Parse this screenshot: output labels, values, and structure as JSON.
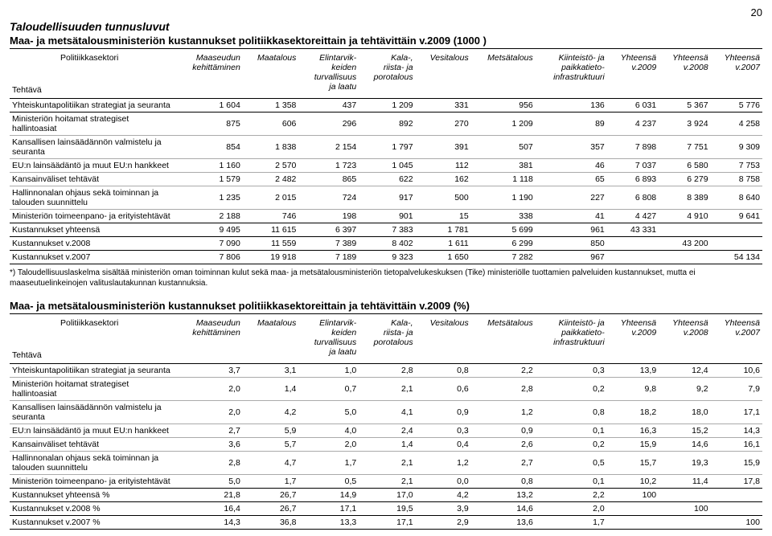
{
  "page_number": "20",
  "main_header": "Taloudellisuuden tunnusluvut",
  "table1": {
    "title": "Maa- ja metsätalousministeriön kustannukset politiikkasektoreittain ja tehtävittäin v.2009 (1000 )",
    "col_left1": "Tehtävä",
    "col_left2": "Politiikkasektori",
    "cols": [
      "Maaseudun\nkehittäminen",
      "Maatalous",
      "Elintarvik-\nkeiden\nturvallisuus\nja laatu",
      "Kala-,\nriista- ja\nporotalous",
      "Vesitalous",
      "Metsätalous",
      "Kiinteistö- ja\npaikkatieto-\ninfrastruktuuri",
      "Yhteensä\nv.2009",
      "Yhteensä\nv.2008",
      "Yhteensä\nv.2007"
    ],
    "rows": [
      {
        "label": "Yhteiskuntapolitiikan strategiat ja seuranta",
        "v": [
          "1 604",
          "1 358",
          "437",
          "1 209",
          "331",
          "956",
          "136",
          "6 031",
          "5 367",
          "5 776"
        ],
        "style": "divider"
      },
      {
        "label": "Ministeriön hoitamat strategiset hallintoasiat",
        "v": [
          "875",
          "606",
          "296",
          "892",
          "270",
          "1 209",
          "89",
          "4 237",
          "3 924",
          "4 258"
        ],
        "style": "thin"
      },
      {
        "label": "Kansallisen lainsäädännön valmistelu ja seuranta",
        "v": [
          "854",
          "1 838",
          "2 154",
          "1 797",
          "391",
          "507",
          "357",
          "7 898",
          "7 751",
          "9 309"
        ],
        "style": "thin"
      },
      {
        "label": "EU:n lainsäädäntö ja muut EU:n hankkeet",
        "v": [
          "1 160",
          "2 570",
          "1 723",
          "1 045",
          "112",
          "381",
          "46",
          "7 037",
          "6 580",
          "7 753"
        ],
        "style": "thin"
      },
      {
        "label": "Kansainväliset tehtävät",
        "v": [
          "1 579",
          "2 482",
          "865",
          "622",
          "162",
          "1 118",
          "65",
          "6 893",
          "6 279",
          "8 758"
        ],
        "style": "thin"
      },
      {
        "label": "Hallinnonalan ohjaus sekä toiminnan ja talouden suunnittelu",
        "v": [
          "1 235",
          "2 015",
          "724",
          "917",
          "500",
          "1 190",
          "227",
          "6 808",
          "8 389",
          "8 640"
        ],
        "style": "thin"
      },
      {
        "label": "Ministeriön toimeenpano- ja erityistehtävät",
        "v": [
          "2 188",
          "746",
          "198",
          "901",
          "15",
          "338",
          "41",
          "4 427",
          "4 910",
          "9 641"
        ],
        "style": "divider"
      },
      {
        "label": "Kustannukset yhteensä",
        "v": [
          "9 495",
          "11 615",
          "6 397",
          "7 383",
          "1 781",
          "5 699",
          "961",
          "43 331",
          "",
          ""
        ],
        "style": "divider"
      },
      {
        "label": "Kustannukset v.2008",
        "v": [
          "7 090",
          "11 559",
          "7 389",
          "8 402",
          "1 611",
          "6 299",
          "850",
          "",
          "43 200",
          ""
        ],
        "style": "divider"
      },
      {
        "label": "Kustannukset v.2007",
        "v": [
          "7 806",
          "19 918",
          "7 189",
          "9 323",
          "1 650",
          "7 282",
          "967",
          "",
          "",
          "54 134"
        ],
        "style": "divider"
      }
    ]
  },
  "footnote": "*) Taloudellisuuslaskelma sisältää ministeriön oman toiminnan kulut sekä maa- ja metsätalousministeriön tietopalvelukeskuksen (Tike) ministeriölle tuottamien palveluiden kustannukset, mutta ei maaseutuelinkeinojen valituslautakunnan kustannuksia.",
  "table2": {
    "title": "Maa- ja metsätalousministeriön kustannukset politiikkasektoreittain ja tehtävittäin v.2009 (%)",
    "col_left1": "Tehtävä",
    "col_left2": "Politiikkasektori",
    "cols": [
      "Maaseudun\nkehittäminen",
      "Maatalous",
      "Elintarvik-\nkeiden\nturvallisuus\nja laatu",
      "Kala-,\nriista- ja\nporotalous",
      "Vesitalous",
      "Metsätalous",
      "Kiinteistö- ja\npaikkatieto-\ninfrastruktuuri",
      "Yhteensä\nv.2009",
      "Yhteensä\nv.2008",
      "Yhteensä\nv.2007"
    ],
    "rows": [
      {
        "label": "Yhteiskuntapolitiikan strategiat ja seuranta",
        "v": [
          "3,7",
          "3,1",
          "1,0",
          "2,8",
          "0,8",
          "2,2",
          "0,3",
          "13,9",
          "12,4",
          "10,6"
        ],
        "style": "thin"
      },
      {
        "label": "Ministeriön hoitamat strategiset hallintoasiat",
        "v": [
          "2,0",
          "1,4",
          "0,7",
          "2,1",
          "0,6",
          "2,8",
          "0,2",
          "9,8",
          "9,2",
          "7,9"
        ],
        "style": "thin"
      },
      {
        "label": "Kansallisen lainsäädännön valmistelu ja seuranta",
        "v": [
          "2,0",
          "4,2",
          "5,0",
          "4,1",
          "0,9",
          "1,2",
          "0,8",
          "18,2",
          "18,0",
          "17,1"
        ],
        "style": "thin"
      },
      {
        "label": "EU:n lainsäädäntö ja muut EU:n hankkeet",
        "v": [
          "2,7",
          "5,9",
          "4,0",
          "2,4",
          "0,3",
          "0,9",
          "0,1",
          "16,3",
          "15,2",
          "14,3"
        ],
        "style": "thin"
      },
      {
        "label": "Kansainväliset tehtävät",
        "v": [
          "3,6",
          "5,7",
          "2,0",
          "1,4",
          "0,4",
          "2,6",
          "0,2",
          "15,9",
          "14,6",
          "16,1"
        ],
        "style": "thin"
      },
      {
        "label": "Hallinnonalan ohjaus sekä toiminnan ja talouden suunnittelu",
        "v": [
          "2,8",
          "4,7",
          "1,7",
          "2,1",
          "1,2",
          "2,7",
          "0,5",
          "15,7",
          "19,3",
          "15,9"
        ],
        "style": "thin"
      },
      {
        "label": "Ministeriön toimeenpano- ja erityistehtävät",
        "v": [
          "5,0",
          "1,7",
          "0,5",
          "2,1",
          "0,0",
          "0,8",
          "0,1",
          "10,2",
          "11,4",
          "17,8"
        ],
        "style": "divider"
      },
      {
        "label": "Kustannukset yhteensä %",
        "v": [
          "21,8",
          "26,7",
          "14,9",
          "17,0",
          "4,2",
          "13,2",
          "2,2",
          "100",
          "",
          ""
        ],
        "style": "divider"
      },
      {
        "label": "Kustannukset v.2008 %",
        "v": [
          "16,4",
          "26,7",
          "17,1",
          "19,5",
          "3,9",
          "14,6",
          "2,0",
          "",
          "100",
          ""
        ],
        "style": "divider"
      },
      {
        "label": "Kustannukset v.2007 %",
        "v": [
          "14,3",
          "36,8",
          "13,3",
          "17,1",
          "2,9",
          "13,6",
          "1,7",
          "",
          "",
          "100"
        ],
        "style": "divider"
      }
    ]
  }
}
